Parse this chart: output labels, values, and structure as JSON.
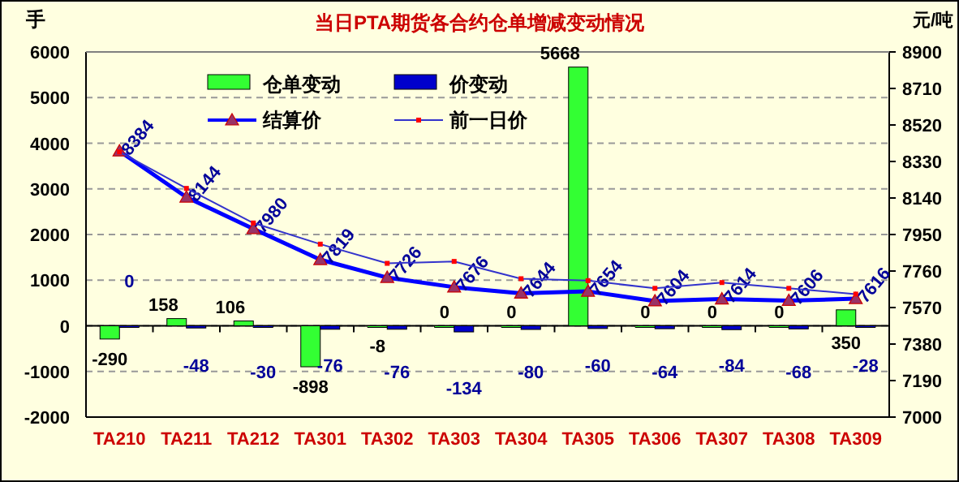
{
  "chart_data": {
    "type": "bar",
    "title": "当日PTA期货各合约仓单增减变动情况",
    "ylabel": "手",
    "y2label": "元/吨",
    "categories": [
      "TA210",
      "TA211",
      "TA212",
      "TA301",
      "TA302",
      "TA303",
      "TA304",
      "TA305",
      "TA306",
      "TA307",
      "TA308",
      "TA309"
    ],
    "series": [
      {
        "name": "仓单变动",
        "color": "#33ff33",
        "values": [
          -290,
          158,
          106,
          -898,
          -8,
          0,
          0,
          5668,
          0,
          0,
          0,
          350
        ],
        "value_labels": [
          "-290",
          "158",
          "106",
          "-898",
          "-8",
          "0",
          "0",
          "5668",
          "0",
          "0",
          "0",
          "350"
        ]
      },
      {
        "name": "价变动",
        "color": "#0000cc",
        "values": [
          0,
          -48,
          -30,
          -76,
          -76,
          -134,
          -80,
          -60,
          -64,
          -84,
          -68,
          -28
        ],
        "value_labels": [
          "0",
          "-48",
          "-30",
          "-76",
          "-76",
          "-134",
          "-80",
          "-60",
          "-64",
          "-84",
          "-68",
          "-28"
        ]
      },
      {
        "name": "结算价",
        "type": "line",
        "axis": "y2",
        "color": "#0000ff",
        "marker": "triangle",
        "values": [
          8384,
          8144,
          7980,
          7819,
          7726,
          7676,
          7644,
          7654,
          7604,
          7614,
          7606,
          7616
        ],
        "value_labels": [
          "8384",
          "8144",
          "7980",
          "7819",
          "7726",
          "7676",
          "7644",
          "7654",
          "7604",
          "7614",
          "7606",
          "7616"
        ]
      },
      {
        "name": "前一日价",
        "type": "line",
        "axis": "y2",
        "color": "#3333cc",
        "marker": "square",
        "values": [
          8380,
          8190,
          8010,
          7900,
          7800,
          7810,
          7720,
          7710,
          7670,
          7700,
          7670,
          7640
        ]
      }
    ],
    "ylim": [
      -2000,
      6000
    ],
    "yticks": [
      -2000,
      -1000,
      0,
      1000,
      2000,
      3000,
      4000,
      5000,
      6000
    ],
    "y2lim": [
      7000,
      8900
    ],
    "y2ticks": [
      7000,
      7190,
      7380,
      7570,
      7760,
      7950,
      8140,
      8330,
      8520,
      8710,
      8900
    ],
    "grid": "y",
    "legend": "top"
  }
}
